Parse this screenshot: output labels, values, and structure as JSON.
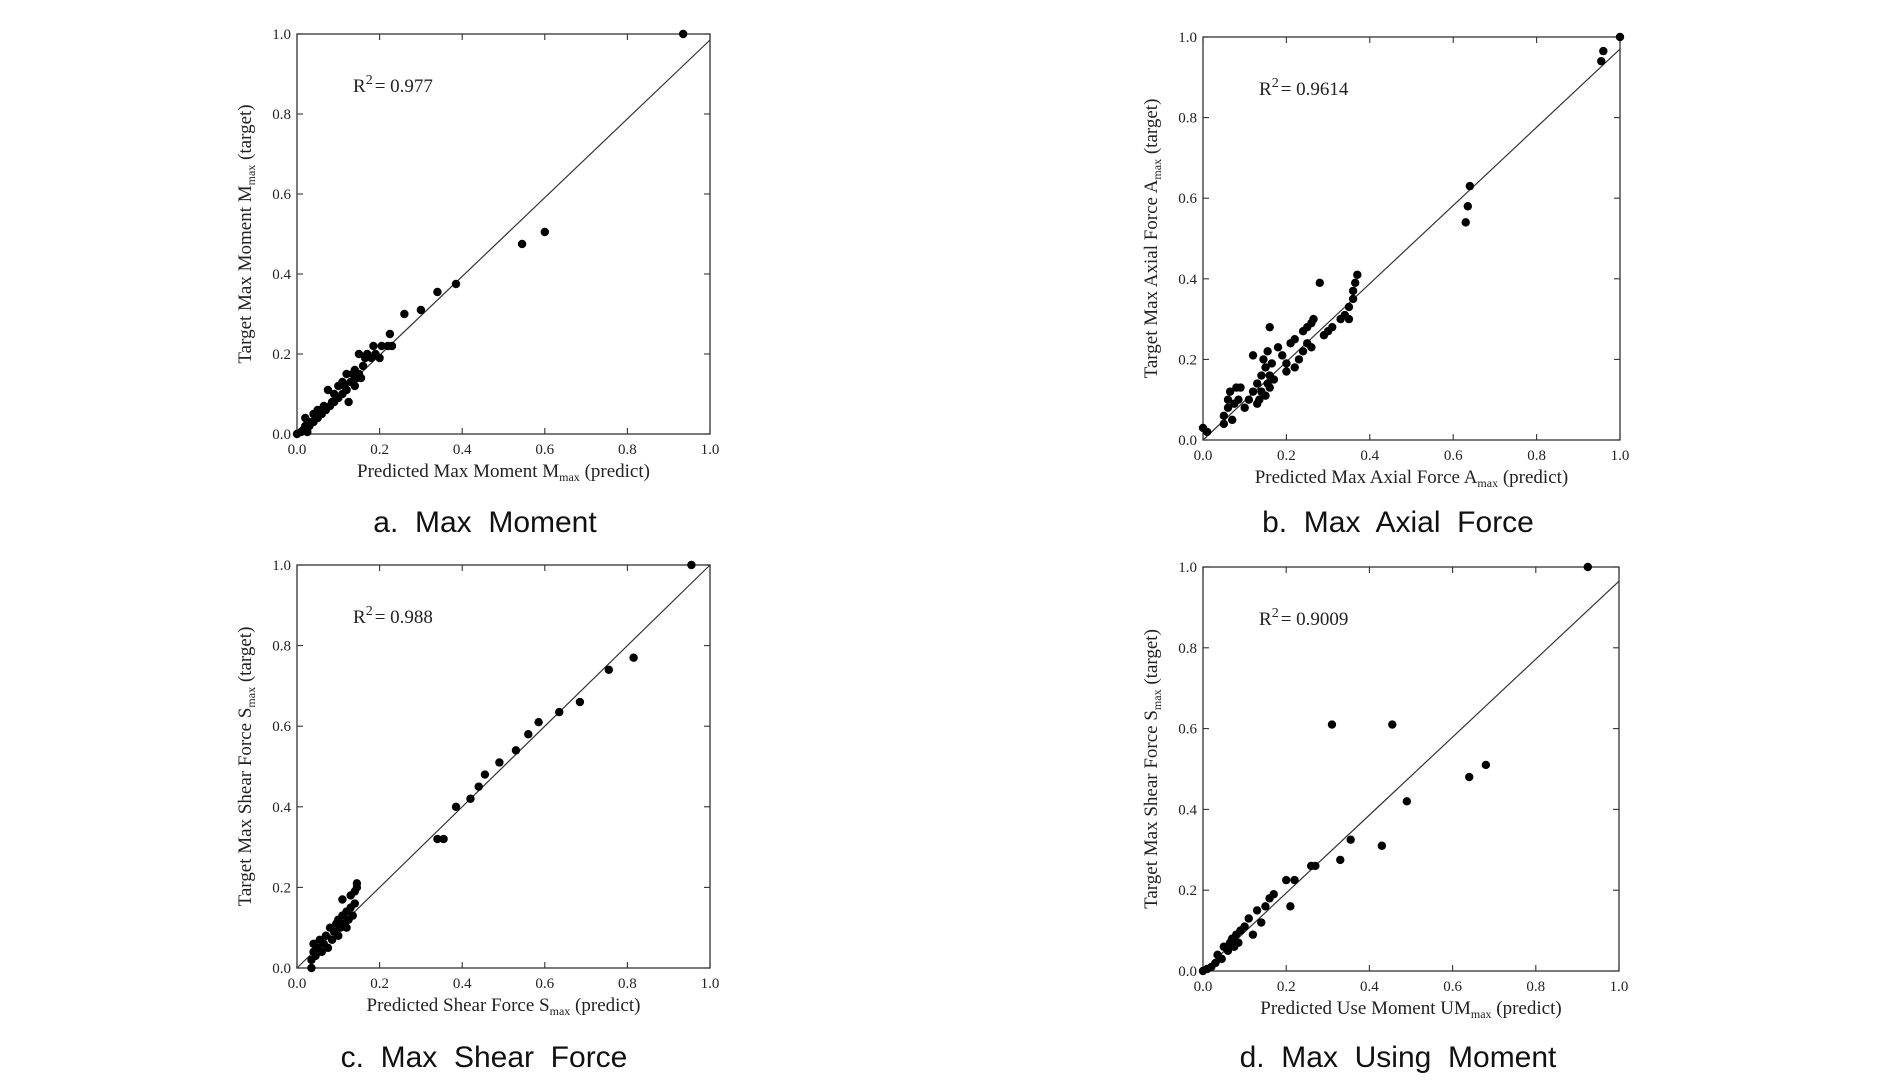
{
  "chart_data": [
    {
      "id": "a",
      "type": "scatter",
      "caption": "a.  Max  Moment",
      "xlabel": {
        "pre": "Predicted Max Moment M",
        "sub": "max",
        "post": " (predict)"
      },
      "ylabel": {
        "pre": "Target Max Moment M",
        "sub": "max",
        "post": " (target)"
      },
      "xlim": [
        0,
        1
      ],
      "ylim": [
        0,
        1
      ],
      "xticks": [
        "0.0",
        "0.2",
        "0.4",
        "0.6",
        "0.8",
        "1.0"
      ],
      "yticks": [
        "0.0",
        "0.2",
        "0.4",
        "0.6",
        "0.8",
        "1.0"
      ],
      "r2_label": "R",
      "r2_sup": "2",
      "r2_value": "= 0.977",
      "fit_line": {
        "x": [
          0,
          1
        ],
        "y": [
          0,
          0.985
        ]
      },
      "points": [
        [
          0.0,
          0.0
        ],
        [
          0.01,
          0.005
        ],
        [
          0.015,
          0.01
        ],
        [
          0.02,
          0.02
        ],
        [
          0.02,
          0.04
        ],
        [
          0.025,
          0.005
        ],
        [
          0.03,
          0.02
        ],
        [
          0.035,
          0.03
        ],
        [
          0.04,
          0.03
        ],
        [
          0.04,
          0.05
        ],
        [
          0.05,
          0.04
        ],
        [
          0.05,
          0.06
        ],
        [
          0.055,
          0.05
        ],
        [
          0.06,
          0.05
        ],
        [
          0.065,
          0.07
        ],
        [
          0.07,
          0.06
        ],
        [
          0.075,
          0.11
        ],
        [
          0.08,
          0.07
        ],
        [
          0.085,
          0.08
        ],
        [
          0.09,
          0.08
        ],
        [
          0.09,
          0.1
        ],
        [
          0.1,
          0.09
        ],
        [
          0.1,
          0.12
        ],
        [
          0.11,
          0.1
        ],
        [
          0.11,
          0.13
        ],
        [
          0.115,
          0.12
        ],
        [
          0.12,
          0.11
        ],
        [
          0.12,
          0.15
        ],
        [
          0.125,
          0.08
        ],
        [
          0.13,
          0.13
        ],
        [
          0.135,
          0.15
        ],
        [
          0.14,
          0.12
        ],
        [
          0.14,
          0.16
        ],
        [
          0.145,
          0.14
        ],
        [
          0.15,
          0.15
        ],
        [
          0.15,
          0.2
        ],
        [
          0.155,
          0.14
        ],
        [
          0.16,
          0.17
        ],
        [
          0.165,
          0.19
        ],
        [
          0.17,
          0.2
        ],
        [
          0.18,
          0.19
        ],
        [
          0.185,
          0.22
        ],
        [
          0.19,
          0.2
        ],
        [
          0.2,
          0.19
        ],
        [
          0.205,
          0.22
        ],
        [
          0.22,
          0.22
        ],
        [
          0.225,
          0.25
        ],
        [
          0.23,
          0.22
        ],
        [
          0.26,
          0.3
        ],
        [
          0.3,
          0.31
        ],
        [
          0.34,
          0.355
        ],
        [
          0.385,
          0.375
        ],
        [
          0.545,
          0.475
        ],
        [
          0.6,
          0.505
        ],
        [
          0.935,
          1.0
        ]
      ]
    },
    {
      "id": "b",
      "type": "scatter",
      "caption": "b.  Max  Axial  Force",
      "xlabel": {
        "pre": "Predicted Max Axial Force A",
        "sub": "max",
        "post": " (predict)"
      },
      "ylabel": {
        "pre": "Target Max Axial Force A",
        "sub": "max",
        "post": " (target)"
      },
      "xlim": [
        0,
        1
      ],
      "ylim": [
        0,
        1
      ],
      "xticks": [
        "0.0",
        "0.2",
        "0.4",
        "0.6",
        "0.8",
        "1.0"
      ],
      "yticks": [
        "0.0",
        "0.2",
        "0.4",
        "0.6",
        "0.8",
        "1.0"
      ],
      "r2_label": "R",
      "r2_sup": "2",
      "r2_value": "= 0.9614",
      "fit_line": {
        "x": [
          0,
          1
        ],
        "y": [
          0,
          0.97
        ]
      },
      "points": [
        [
          0.0,
          0.03
        ],
        [
          0.01,
          0.02
        ],
        [
          0.05,
          0.04
        ],
        [
          0.05,
          0.06
        ],
        [
          0.06,
          0.08
        ],
        [
          0.06,
          0.1
        ],
        [
          0.065,
          0.12
        ],
        [
          0.07,
          0.05
        ],
        [
          0.075,
          0.09
        ],
        [
          0.08,
          0.13
        ],
        [
          0.085,
          0.1
        ],
        [
          0.09,
          0.13
        ],
        [
          0.1,
          0.08
        ],
        [
          0.11,
          0.1
        ],
        [
          0.12,
          0.12
        ],
        [
          0.12,
          0.21
        ],
        [
          0.13,
          0.14
        ],
        [
          0.13,
          0.09
        ],
        [
          0.135,
          0.1
        ],
        [
          0.14,
          0.12
        ],
        [
          0.14,
          0.16
        ],
        [
          0.145,
          0.2
        ],
        [
          0.15,
          0.11
        ],
        [
          0.15,
          0.18
        ],
        [
          0.155,
          0.14
        ],
        [
          0.155,
          0.22
        ],
        [
          0.16,
          0.28
        ],
        [
          0.16,
          0.16
        ],
        [
          0.16,
          0.13
        ],
        [
          0.165,
          0.19
        ],
        [
          0.17,
          0.15
        ],
        [
          0.18,
          0.23
        ],
        [
          0.19,
          0.21
        ],
        [
          0.2,
          0.17
        ],
        [
          0.2,
          0.19
        ],
        [
          0.21,
          0.24
        ],
        [
          0.22,
          0.25
        ],
        [
          0.22,
          0.18
        ],
        [
          0.23,
          0.2
        ],
        [
          0.24,
          0.22
        ],
        [
          0.24,
          0.27
        ],
        [
          0.25,
          0.24
        ],
        [
          0.25,
          0.28
        ],
        [
          0.26,
          0.23
        ],
        [
          0.26,
          0.29
        ],
        [
          0.265,
          0.3
        ],
        [
          0.28,
          0.39
        ],
        [
          0.29,
          0.26
        ],
        [
          0.3,
          0.27
        ],
        [
          0.31,
          0.28
        ],
        [
          0.33,
          0.3
        ],
        [
          0.34,
          0.31
        ],
        [
          0.35,
          0.3
        ],
        [
          0.35,
          0.33
        ],
        [
          0.36,
          0.35
        ],
        [
          0.36,
          0.37
        ],
        [
          0.365,
          0.39
        ],
        [
          0.37,
          0.41
        ],
        [
          0.63,
          0.54
        ],
        [
          0.635,
          0.58
        ],
        [
          0.64,
          0.63
        ],
        [
          0.955,
          0.94
        ],
        [
          0.96,
          0.965
        ],
        [
          1.0,
          1.0
        ]
      ]
    },
    {
      "id": "c",
      "type": "scatter",
      "caption": "c.  Max  Shear  Force",
      "xlabel": {
        "pre": "Predicted Shear Force S",
        "sub": "max",
        "post": " (predict)"
      },
      "ylabel": {
        "pre": "Target Max Shear Force S",
        "sub": "max",
        "post": " (target)"
      },
      "xlim": [
        0,
        1
      ],
      "ylim": [
        0,
        1
      ],
      "xticks": [
        "0.0",
        "0.2",
        "0.4",
        "0.6",
        "0.8",
        "1.0"
      ],
      "yticks": [
        "0.0",
        "0.2",
        "0.4",
        "0.6",
        "0.8",
        "1.0"
      ],
      "r2_label": "R",
      "r2_sup": "2",
      "r2_value": "= 0.988",
      "fit_line": {
        "x": [
          0,
          1
        ],
        "y": [
          0,
          1.0
        ]
      },
      "points": [
        [
          0.035,
          0.0
        ],
        [
          0.035,
          0.02
        ],
        [
          0.04,
          0.04
        ],
        [
          0.04,
          0.06
        ],
        [
          0.045,
          0.03
        ],
        [
          0.05,
          0.05
        ],
        [
          0.055,
          0.07
        ],
        [
          0.06,
          0.04
        ],
        [
          0.065,
          0.06
        ],
        [
          0.07,
          0.08
        ],
        [
          0.075,
          0.05
        ],
        [
          0.08,
          0.1
        ],
        [
          0.085,
          0.07
        ],
        [
          0.09,
          0.09
        ],
        [
          0.095,
          0.11
        ],
        [
          0.1,
          0.08
        ],
        [
          0.1,
          0.12
        ],
        [
          0.105,
          0.1
        ],
        [
          0.11,
          0.13
        ],
        [
          0.11,
          0.17
        ],
        [
          0.115,
          0.11
        ],
        [
          0.12,
          0.14
        ],
        [
          0.12,
          0.1
        ],
        [
          0.125,
          0.12
        ],
        [
          0.13,
          0.15
        ],
        [
          0.13,
          0.18
        ],
        [
          0.135,
          0.13
        ],
        [
          0.14,
          0.16
        ],
        [
          0.14,
          0.19
        ],
        [
          0.145,
          0.2
        ],
        [
          0.145,
          0.21
        ],
        [
          0.34,
          0.32
        ],
        [
          0.355,
          0.32
        ],
        [
          0.385,
          0.4
        ],
        [
          0.42,
          0.42
        ],
        [
          0.44,
          0.45
        ],
        [
          0.455,
          0.48
        ],
        [
          0.49,
          0.51
        ],
        [
          0.53,
          0.54
        ],
        [
          0.56,
          0.58
        ],
        [
          0.585,
          0.61
        ],
        [
          0.635,
          0.635
        ],
        [
          0.685,
          0.66
        ],
        [
          0.755,
          0.74
        ],
        [
          0.815,
          0.77
        ],
        [
          0.955,
          1.0
        ]
      ]
    },
    {
      "id": "d",
      "type": "scatter",
      "caption": "d.  Max  Using  Moment",
      "xlabel": {
        "pre": "Predicted Use Moment UM",
        "sub": "max",
        "post": " (predict)"
      },
      "ylabel": {
        "pre": "Target Max Shear Force S",
        "sub": "max",
        "post": " (target)"
      },
      "xlim": [
        0,
        1
      ],
      "ylim": [
        0,
        1
      ],
      "xticks": [
        "0.0",
        "0.2",
        "0.4",
        "0.6",
        "0.8",
        "1.0"
      ],
      "yticks": [
        "0.0",
        "0.2",
        "0.4",
        "0.6",
        "0.8",
        "1.0"
      ],
      "r2_label": "R",
      "r2_sup": "2",
      "r2_value": "= 0.9009",
      "fit_line": {
        "x": [
          0,
          1
        ],
        "y": [
          0,
          0.965
        ]
      },
      "points": [
        [
          0.0,
          0.0
        ],
        [
          0.01,
          0.005
        ],
        [
          0.02,
          0.01
        ],
        [
          0.03,
          0.02
        ],
        [
          0.035,
          0.04
        ],
        [
          0.045,
          0.03
        ],
        [
          0.05,
          0.06
        ],
        [
          0.06,
          0.05
        ],
        [
          0.065,
          0.07
        ],
        [
          0.07,
          0.08
        ],
        [
          0.075,
          0.06
        ],
        [
          0.08,
          0.09
        ],
        [
          0.085,
          0.07
        ],
        [
          0.09,
          0.1
        ],
        [
          0.1,
          0.11
        ],
        [
          0.11,
          0.13
        ],
        [
          0.12,
          0.09
        ],
        [
          0.13,
          0.15
        ],
        [
          0.14,
          0.12
        ],
        [
          0.15,
          0.16
        ],
        [
          0.16,
          0.18
        ],
        [
          0.17,
          0.19
        ],
        [
          0.2,
          0.225
        ],
        [
          0.21,
          0.16
        ],
        [
          0.22,
          0.225
        ],
        [
          0.26,
          0.26
        ],
        [
          0.27,
          0.26
        ],
        [
          0.31,
          0.61
        ],
        [
          0.33,
          0.275
        ],
        [
          0.355,
          0.325
        ],
        [
          0.43,
          0.31
        ],
        [
          0.455,
          0.61
        ],
        [
          0.49,
          0.42
        ],
        [
          0.64,
          0.48
        ],
        [
          0.68,
          0.51
        ],
        [
          0.925,
          1.0
        ]
      ]
    }
  ]
}
